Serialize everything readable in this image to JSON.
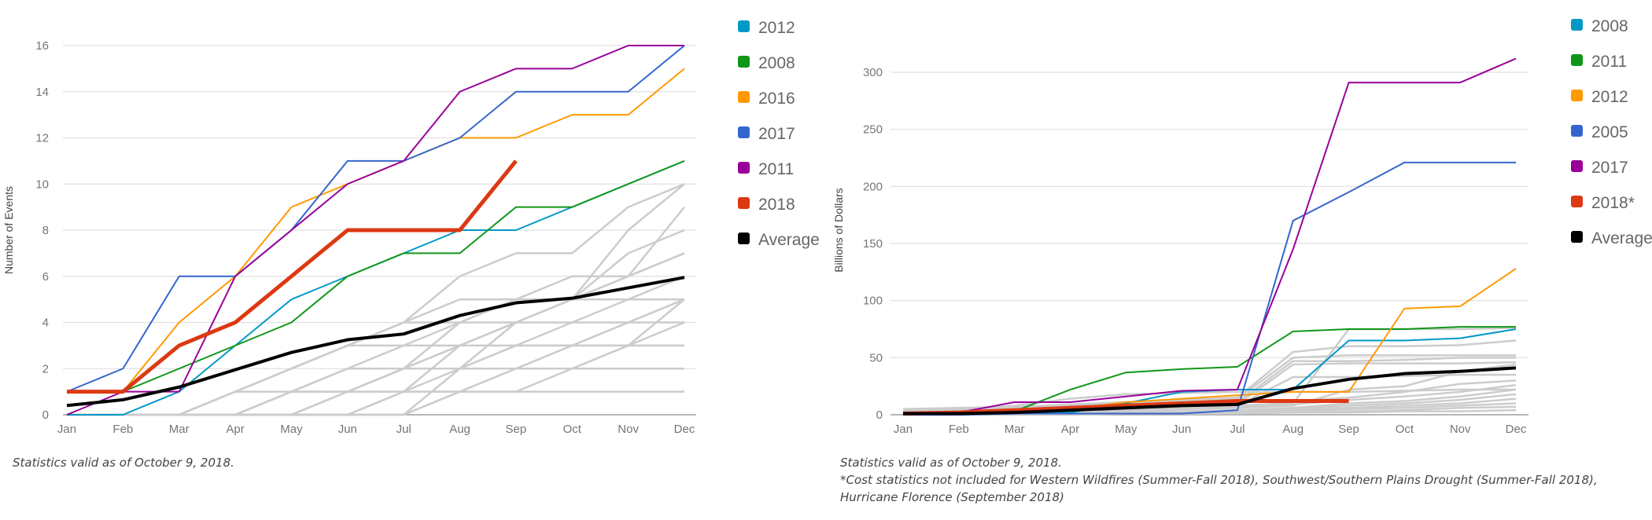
{
  "months": [
    "Jan",
    "Feb",
    "Mar",
    "Apr",
    "May",
    "Jun",
    "Jul",
    "Aug",
    "Sep",
    "Oct",
    "Nov",
    "Dec"
  ],
  "chart_data": [
    {
      "type": "line",
      "title": "",
      "xlabel": "",
      "ylabel": "Number of Events",
      "ylim": [
        0,
        16
      ],
      "yticks": [
        0,
        2,
        4,
        6,
        8,
        10,
        12,
        14,
        16
      ],
      "grid": true,
      "legend_position": "right",
      "categories": [
        "Jan",
        "Feb",
        "Mar",
        "Apr",
        "May",
        "Jun",
        "Jul",
        "Aug",
        "Sep",
        "Oct",
        "Nov",
        "Dec"
      ],
      "background_series_color": "#cccccc",
      "background_series": [
        [
          0,
          0,
          0,
          1,
          1,
          1,
          1,
          1,
          1,
          1,
          1,
          1
        ],
        [
          0,
          0,
          0,
          0,
          1,
          2,
          2,
          2,
          2,
          2,
          2,
          2
        ],
        [
          0,
          0,
          0,
          1,
          2,
          3,
          3,
          3,
          3,
          3,
          3,
          3
        ],
        [
          0,
          0,
          0,
          0,
          1,
          2,
          3,
          4,
          4,
          4,
          4,
          4
        ],
        [
          0,
          0,
          0,
          1,
          2,
          3,
          4,
          5,
          5,
          5,
          5,
          5
        ],
        [
          0,
          0,
          0,
          0,
          0,
          1,
          1,
          1,
          1,
          2,
          3,
          3
        ],
        [
          0,
          0,
          0,
          0,
          0,
          0,
          0,
          1,
          2,
          2,
          3,
          5
        ],
        [
          0,
          0,
          0,
          0,
          1,
          1,
          2,
          4,
          5,
          6,
          6,
          7
        ],
        [
          0,
          0,
          0,
          0,
          1,
          2,
          2,
          3,
          4,
          5,
          7,
          8
        ],
        [
          0,
          0,
          0,
          1,
          2,
          3,
          4,
          4,
          5,
          5,
          6,
          7
        ],
        [
          0,
          0,
          0,
          0,
          0,
          1,
          2,
          2,
          3,
          3,
          4,
          5
        ],
        [
          0,
          0,
          0,
          0,
          0,
          0,
          1,
          3,
          4,
          5,
          6,
          7
        ],
        [
          0,
          0,
          0,
          0,
          1,
          1,
          2,
          2,
          3,
          4,
          5,
          6
        ],
        [
          0,
          0,
          0,
          0,
          0,
          0,
          0,
          1,
          2,
          3,
          4,
          5
        ],
        [
          0,
          0,
          0,
          1,
          2,
          3,
          4,
          6,
          7,
          7,
          9,
          10
        ],
        [
          0,
          0,
          0,
          0,
          0,
          1,
          2,
          3,
          4,
          5,
          8,
          10
        ],
        [
          0,
          0,
          0,
          0,
          0,
          0,
          1,
          2,
          2,
          3,
          3,
          4
        ],
        [
          0,
          0,
          0,
          0,
          0,
          0,
          0,
          2,
          4,
          5,
          6,
          9
        ]
      ],
      "series": [
        {
          "name": "2012",
          "color": "#0099c6",
          "width": 2,
          "values": [
            0,
            0,
            1,
            3,
            5,
            6,
            7,
            8,
            8,
            9,
            10,
            11
          ]
        },
        {
          "name": "2008",
          "color": "#109618",
          "width": 2,
          "values": [
            1,
            1,
            2,
            3,
            4,
            6,
            7,
            7,
            9,
            9,
            10,
            11
          ]
        },
        {
          "name": "2016",
          "color": "#ff9900",
          "width": 2,
          "values": [
            1,
            1,
            4,
            6,
            9,
            10,
            11,
            12,
            12,
            13,
            13,
            15
          ]
        },
        {
          "name": "2017",
          "color": "#3366cc",
          "width": 2,
          "values": [
            1,
            2,
            6,
            6,
            8,
            11,
            11,
            12,
            14,
            14,
            14,
            16
          ]
        },
        {
          "name": "2011",
          "color": "#990099",
          "width": 2,
          "values": [
            0,
            1,
            1,
            6,
            8,
            10,
            11,
            14,
            15,
            15,
            16,
            16
          ]
        },
        {
          "name": "2018",
          "color": "#dc3912",
          "width": 5,
          "values": [
            1,
            1,
            3,
            4,
            6,
            8,
            8,
            8,
            11
          ]
        },
        {
          "name": "Average",
          "color": "#000000",
          "width": 4,
          "values": [
            0.4,
            0.65,
            1.2,
            1.95,
            2.7,
            3.25,
            3.5,
            4.3,
            4.85,
            5.05,
            5.5,
            5.95
          ]
        }
      ]
    },
    {
      "type": "line",
      "title": "",
      "xlabel": "",
      "ylabel": "Billions of Dollars",
      "ylim": [
        0,
        300
      ],
      "yticks": [
        0,
        50,
        100,
        150,
        200,
        250,
        300
      ],
      "grid": true,
      "legend_position": "right",
      "categories": [
        "Jan",
        "Feb",
        "Mar",
        "Apr",
        "May",
        "Jun",
        "Jul",
        "Aug",
        "Sep",
        "Oct",
        "Nov",
        "Dec"
      ],
      "background_series_color": "#cccccc",
      "background_series": [
        [
          5,
          6,
          7,
          9,
          11,
          13,
          15,
          55,
          60,
          60,
          61,
          65
        ],
        [
          3,
          4,
          5,
          8,
          10,
          12,
          14,
          50,
          52,
          52,
          52,
          52
        ],
        [
          4,
          5,
          6,
          7,
          9,
          10,
          11,
          47,
          47,
          48,
          50,
          50
        ],
        [
          2,
          3,
          4,
          5,
          6,
          8,
          9,
          44,
          45,
          45,
          45,
          46
        ],
        [
          1,
          2,
          3,
          4,
          5,
          6,
          8,
          33,
          33,
          34,
          35,
          35
        ],
        [
          2,
          3,
          4,
          5,
          6,
          7,
          8,
          10,
          75,
          75,
          75,
          76
        ],
        [
          1,
          1,
          2,
          3,
          4,
          5,
          6,
          8,
          22,
          25,
          38,
          44
        ],
        [
          1,
          2,
          3,
          3,
          4,
          5,
          6,
          12,
          15,
          20,
          27,
          30
        ],
        [
          0,
          1,
          2,
          3,
          4,
          5,
          6,
          9,
          13,
          16,
          20,
          26
        ],
        [
          1,
          1,
          2,
          2,
          3,
          3,
          4,
          6,
          10,
          12,
          16,
          22
        ],
        [
          0,
          1,
          1,
          2,
          2,
          3,
          4,
          5,
          8,
          10,
          13,
          18
        ],
        [
          0,
          0,
          1,
          1,
          2,
          2,
          3,
          4,
          6,
          8,
          10,
          14
        ],
        [
          0,
          0,
          1,
          1,
          1,
          2,
          2,
          3,
          5,
          6,
          8,
          10
        ],
        [
          0,
          0,
          0,
          1,
          1,
          1,
          2,
          2,
          3,
          4,
          6,
          7
        ],
        [
          0,
          0,
          0,
          0,
          1,
          1,
          1,
          2,
          2,
          3,
          3,
          4
        ],
        [
          5,
          5,
          8,
          14,
          18,
          19,
          20,
          20,
          20,
          21,
          22,
          22
        ]
      ],
      "series": [
        {
          "name": "2008",
          "color": "#0099c6",
          "width": 2,
          "values": [
            0,
            0,
            1,
            2,
            10,
            20,
            22,
            22,
            65,
            65,
            67,
            75
          ]
        },
        {
          "name": "2011",
          "color": "#109618",
          "width": 2,
          "values": [
            1,
            1,
            3,
            22,
            37,
            40,
            42,
            73,
            75,
            75,
            77,
            77
          ]
        },
        {
          "name": "2012",
          "color": "#ff9900",
          "width": 2,
          "values": [
            1,
            1,
            3,
            5,
            11,
            14,
            17,
            20,
            20,
            93,
            95,
            128
          ]
        },
        {
          "name": "2005",
          "color": "#3366cc",
          "width": 2,
          "values": [
            0,
            0,
            1,
            1,
            1,
            1,
            4,
            170,
            195,
            221,
            221,
            221
          ]
        },
        {
          "name": "2017",
          "color": "#990099",
          "width": 2,
          "values": [
            1,
            2,
            11,
            11,
            16,
            21,
            22,
            145,
            291,
            291,
            291,
            312
          ]
        },
        {
          "name": "2018*",
          "color": "#dc3912",
          "width": 5,
          "values": [
            1,
            2,
            4,
            6,
            8,
            10,
            12,
            12,
            12
          ]
        },
        {
          "name": "Average",
          "color": "#000000",
          "width": 4,
          "values": [
            1,
            1,
            2,
            4,
            6,
            8,
            9,
            23,
            31,
            36,
            38,
            41
          ]
        }
      ]
    }
  ],
  "notes": {
    "left": "Statistics valid as of October 9, 2018.",
    "right_line1": "Statistics valid as of October 9, 2018.",
    "right_line2": "*Cost statistics not included for Western Wildfires (Summer-Fall 2018), Southwest/Southern Plains Drought (Summer-Fall 2018),",
    "right_line3": "Hurricane Florence (September 2018)"
  }
}
